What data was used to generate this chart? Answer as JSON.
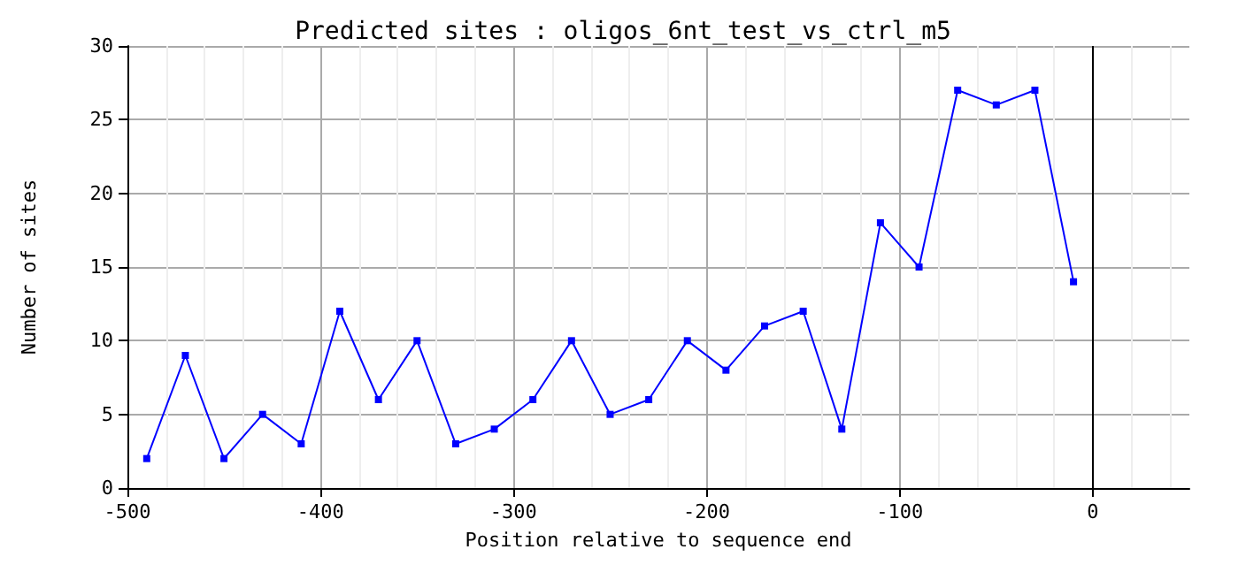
{
  "chart_data": {
    "type": "line",
    "title": "Predicted sites : oligos_6nt_test_vs_ctrl_m5",
    "xlabel": "Position relative to sequence end",
    "ylabel": "Number of sites",
    "x": [
      -490,
      -470,
      -450,
      -430,
      -410,
      -390,
      -370,
      -350,
      -330,
      -310,
      -290,
      -270,
      -250,
      -230,
      -210,
      -190,
      -170,
      -150,
      -130,
      -110,
      -90,
      -70,
      -50,
      -30,
      -10
    ],
    "series": [
      {
        "color": "#0000ff",
        "values": [
          2,
          9,
          2,
          5,
          3,
          12,
          6,
          10,
          3,
          4,
          6,
          10,
          5,
          6,
          10,
          8,
          11,
          12,
          4,
          18,
          15,
          27,
          26,
          27,
          14
        ]
      }
    ],
    "xlim": [
      -500,
      50
    ],
    "xticks": [
      -500,
      -400,
      -300,
      -200,
      -100,
      0
    ],
    "ylim": [
      0,
      30
    ],
    "yticks": [
      0,
      5,
      10,
      15,
      20,
      25,
      30
    ],
    "ref_lines": [
      {
        "axis": "x",
        "value": 0,
        "color": "#000000"
      }
    ],
    "grid": true,
    "marker": "square",
    "line_style": "solid"
  }
}
